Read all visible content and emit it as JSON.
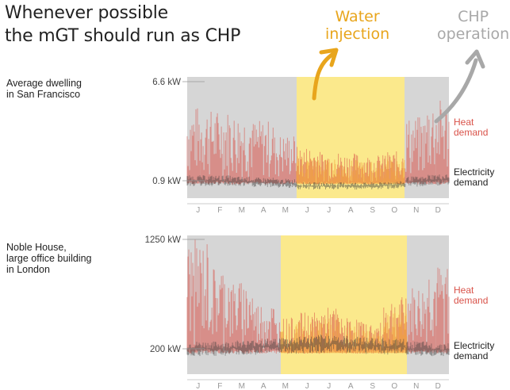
{
  "header": {
    "title_line1": "Whenever possible",
    "title_line2": "the mGT should run as CHP"
  },
  "annotations": {
    "water_line1": "Water",
    "water_line2": "injection",
    "chp_line1": "CHP",
    "chp_line2": "operation"
  },
  "colors": {
    "water": "#e8a51c",
    "chp": "#a8a8a8",
    "heat": "#d9534a",
    "electricity": "#3a3a3a",
    "summer_band": "#fbe98c",
    "winter_band": "#d6d6d6"
  },
  "chart_data": [
    {
      "type": "line",
      "building_line1": "Average dwelling",
      "building_line2": "in San Francisco",
      "months": [
        "J",
        "F",
        "M",
        "A",
        "M",
        "J",
        "J",
        "A",
        "S",
        "O",
        "N",
        "D"
      ],
      "y_ticks": [
        6.6,
        0.9
      ],
      "y_tick_labels": [
        "6.6 kW",
        "0.9 kW"
      ],
      "water_injection_months": [
        "J",
        "J",
        "A",
        "S",
        "O"
      ],
      "series": [
        {
          "name": "Heat demand",
          "label_line1": "Heat",
          "label_line2": "demand",
          "monthly_peak_kw": [
            5.2,
            5.0,
            4.8,
            4.4,
            3.6,
            2.9,
            2.6,
            2.5,
            2.4,
            2.6,
            4.6,
            5.6
          ]
        },
        {
          "name": "Electricity demand",
          "label_line1": "Electricity",
          "label_line2": "demand",
          "monthly_mean_kw": [
            0.9,
            0.9,
            0.85,
            0.8,
            0.75,
            0.6,
            0.6,
            0.6,
            0.6,
            0.65,
            0.85,
            0.95
          ]
        }
      ]
    },
    {
      "type": "line",
      "building_line1": "Noble House,",
      "building_line2": "large office building",
      "building_line3": "in London",
      "months": [
        "J",
        "F",
        "M",
        "A",
        "M",
        "J",
        "J",
        "A",
        "S",
        "O",
        "N",
        "D"
      ],
      "y_ticks": [
        1250,
        200
      ],
      "y_tick_labels": [
        "1250 kW",
        "200 kW"
      ],
      "water_injection_months": [
        "M",
        "J",
        "J",
        "A",
        "S",
        "O"
      ],
      "series": [
        {
          "name": "Heat demand",
          "label_line1": "Heat",
          "label_line2": "demand",
          "monthly_peak_kw": [
            1250,
            1000,
            850,
            650,
            500,
            550,
            600,
            500,
            450,
            700,
            800,
            1000
          ]
        },
        {
          "name": "Electricity demand",
          "label_line1": "Electricity",
          "label_line2": "demand",
          "monthly_mean_kw": [
            200,
            200,
            210,
            220,
            230,
            240,
            250,
            240,
            230,
            220,
            200,
            190
          ]
        }
      ]
    }
  ]
}
